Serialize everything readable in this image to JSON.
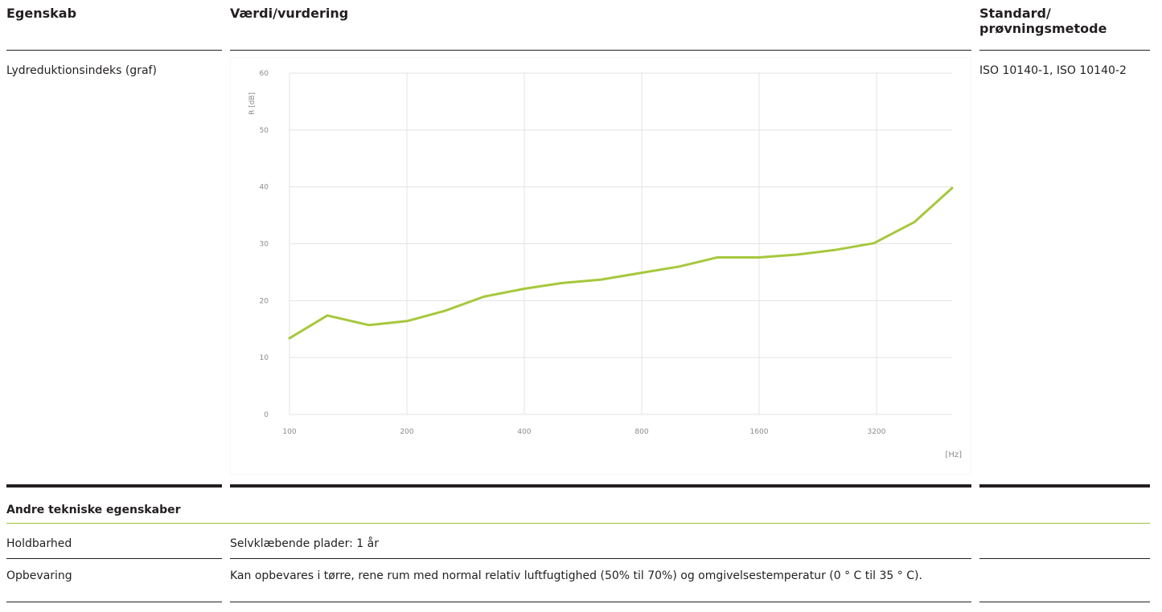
{
  "table": {
    "headers": {
      "property": "Egenskab",
      "value": "Værdi/vurdering",
      "standard_line1": "Standard/",
      "standard_line2": "prøvningsmetode"
    },
    "graph_row": {
      "property": "Lydreduktionsindeks (graf)",
      "standard": "ISO 10140-1, ISO 10140-2"
    },
    "section": {
      "title": "Andre tekniske egenskaber"
    },
    "rows": [
      {
        "property": "Holdbarhed",
        "value": "Selvklæbende plader: 1 år",
        "standard": ""
      },
      {
        "property": "Opbevaring",
        "value": "Kan opbevares i tørre, rene rum med normal relativ luftfugtighed (50% til 70%) og omgivelsestemperatur (0 ° C til 35 ° C).",
        "standard": ""
      }
    ]
  },
  "chart_data": {
    "type": "line",
    "xlabel": "[Hz]",
    "ylabel": "R [dB]",
    "x_scale": "log",
    "x_ticks": [
      "100",
      "200",
      "400",
      "800",
      "1600",
      "3200"
    ],
    "y_ticks": [
      "0",
      "10",
      "20",
      "30",
      "40",
      "50",
      "60"
    ],
    "ylim": [
      0,
      60
    ],
    "xlim": [
      100,
      5000
    ],
    "grid": true,
    "line_color": "#a6c83c",
    "series": [
      {
        "x": [
          100,
          125,
          160,
          200,
          250,
          315,
          400,
          500,
          630,
          800,
          1000,
          1250,
          1600,
          2000,
          2500,
          3150,
          4000,
          5000
        ],
        "values": [
          13.4,
          17.4,
          15.7,
          16.4,
          18.2,
          20.7,
          22.1,
          23.1,
          23.7,
          24.9,
          26.0,
          27.6,
          27.6,
          28.1,
          28.9,
          30.1,
          33.8,
          39.8
        ]
      }
    ]
  }
}
